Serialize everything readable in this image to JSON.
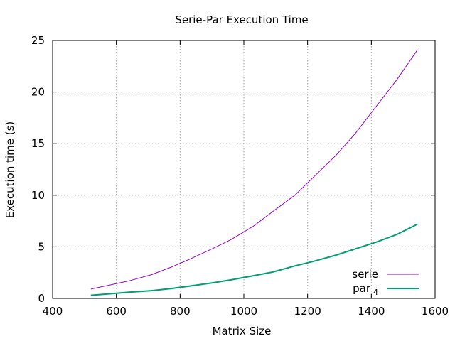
{
  "chart_data": {
    "type": "line",
    "title": "Serie-Par Execution Time",
    "xlabel": "Matrix Size",
    "ylabel": "Execution time (s)",
    "xlim": [
      400,
      1600
    ],
    "ylim": [
      0,
      25
    ],
    "x_ticks": [
      400,
      600,
      800,
      1000,
      1200,
      1400,
      1600
    ],
    "y_ticks": [
      0,
      5,
      10,
      15,
      20,
      25
    ],
    "grid": true,
    "legend_position": "bottom-right",
    "series": [
      {
        "name": "serie",
        "color": "#9400d3",
        "x": [
          520,
          580,
          640,
          710,
          770,
          830,
          900,
          960,
          1030,
          1090,
          1160,
          1220,
          1290,
          1350,
          1420,
          1480,
          1545
        ],
        "y": [
          0.9,
          1.3,
          1.7,
          2.3,
          3.0,
          3.8,
          4.8,
          5.7,
          7.0,
          8.4,
          10.0,
          11.8,
          13.9,
          16.0,
          18.8,
          21.2,
          24.1
        ]
      },
      {
        "name": "par",
        "name_subscript": "4",
        "color": "#009e73",
        "x": [
          520,
          580,
          640,
          710,
          770,
          830,
          900,
          960,
          1030,
          1090,
          1160,
          1220,
          1290,
          1350,
          1420,
          1480,
          1545
        ],
        "y": [
          0.3,
          0.45,
          0.6,
          0.75,
          0.95,
          1.2,
          1.5,
          1.8,
          2.2,
          2.55,
          3.15,
          3.6,
          4.2,
          4.8,
          5.5,
          6.2,
          7.2
        ]
      }
    ]
  }
}
